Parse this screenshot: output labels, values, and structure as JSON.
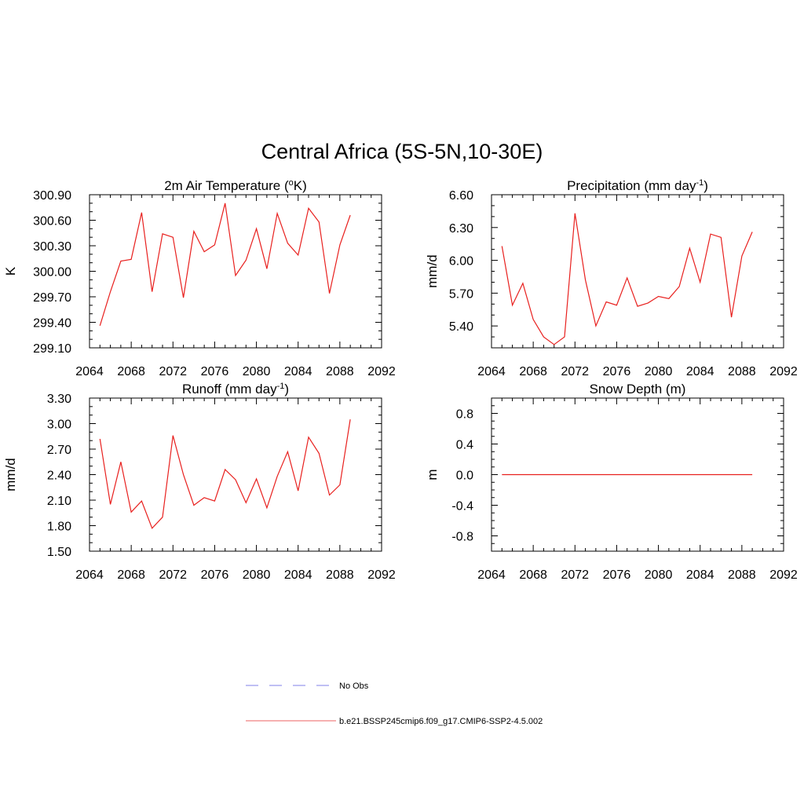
{
  "title": "Central Africa (5S-5N,10-30E)",
  "colors": {
    "model": "#e8201e",
    "obs": "#9a9aee",
    "model_legend": "#f08080",
    "axis": "#000000"
  },
  "legend": [
    {
      "label": "No Obs",
      "style": "dashed",
      "color": "#9a9aee"
    },
    {
      "label": "b.e21.BSSP245cmip6.f09_g17.CMIP6-SSP2-4.5.002",
      "style": "solid",
      "color": "#f08080"
    }
  ],
  "chart_data": [
    {
      "type": "line",
      "title": "2m Air Temperature (",
      "title_sup": "o",
      "title_tail": "K)",
      "ylabel": "K",
      "xlim": [
        2064,
        2092
      ],
      "ylim": [
        299.1,
        300.9
      ],
      "xticks": [
        "2064",
        "2068",
        "2072",
        "2076",
        "2080",
        "2084",
        "2088",
        "2092"
      ],
      "yticks": [
        "299.10",
        "299.40",
        "299.70",
        "300.00",
        "300.30",
        "300.60",
        "300.90"
      ],
      "x": [
        2065,
        2066,
        2067,
        2068,
        2069,
        2070,
        2071,
        2072,
        2073,
        2074,
        2075,
        2076,
        2077,
        2078,
        2079,
        2080,
        2081,
        2082,
        2083,
        2084,
        2085,
        2086,
        2087,
        2088,
        2089
      ],
      "series": [
        {
          "values": [
            299.36,
            299.76,
            300.12,
            300.14,
            300.69,
            299.76,
            300.44,
            300.4,
            299.69,
            300.47,
            300.23,
            300.31,
            300.8,
            299.95,
            300.13,
            300.5,
            300.03,
            300.68,
            300.33,
            300.19,
            300.74,
            300.58,
            299.74,
            300.31,
            300.66
          ]
        }
      ]
    },
    {
      "type": "line",
      "title": "Precipitation (mm day",
      "title_sup": "-1",
      "title_tail": ")",
      "ylabel": "mm/d",
      "xlim": [
        2064,
        2092
      ],
      "ylim": [
        5.2,
        6.6
      ],
      "xticks": [
        "2064",
        "2068",
        "2072",
        "2076",
        "2080",
        "2084",
        "2088",
        "2092"
      ],
      "yticks": [
        "5.40",
        "5.70",
        "6.00",
        "6.30",
        "6.60"
      ],
      "ytick_values": [
        5.4,
        5.7,
        6.0,
        6.3,
        6.6
      ],
      "x": [
        2065,
        2066,
        2067,
        2068,
        2069,
        2070,
        2071,
        2072,
        2073,
        2074,
        2075,
        2076,
        2077,
        2078,
        2079,
        2080,
        2081,
        2082,
        2083,
        2084,
        2085,
        2086,
        2087,
        2088,
        2089
      ],
      "series": [
        {
          "values": [
            6.13,
            5.59,
            5.79,
            5.46,
            5.3,
            5.23,
            5.3,
            6.43,
            5.82,
            5.4,
            5.62,
            5.59,
            5.84,
            5.58,
            5.61,
            5.67,
            5.65,
            5.76,
            6.11,
            5.8,
            6.24,
            6.21,
            5.48,
            6.04,
            6.26
          ]
        }
      ]
    },
    {
      "type": "line",
      "title": "Runoff (mm day",
      "title_sup": "-1",
      "title_tail": ")",
      "ylabel": "mm/d",
      "xlim": [
        2064,
        2092
      ],
      "ylim": [
        1.5,
        3.3
      ],
      "xticks": [
        "2064",
        "2068",
        "2072",
        "2076",
        "2080",
        "2084",
        "2088",
        "2092"
      ],
      "yticks": [
        "1.50",
        "1.80",
        "2.10",
        "2.40",
        "2.70",
        "3.00",
        "3.30"
      ],
      "x": [
        2065,
        2066,
        2067,
        2068,
        2069,
        2070,
        2071,
        2072,
        2073,
        2074,
        2075,
        2076,
        2077,
        2078,
        2079,
        2080,
        2081,
        2082,
        2083,
        2084,
        2085,
        2086,
        2087,
        2088,
        2089
      ],
      "series": [
        {
          "values": [
            2.82,
            2.05,
            2.55,
            1.96,
            2.09,
            1.77,
            1.9,
            2.86,
            2.4,
            2.04,
            2.13,
            2.09,
            2.46,
            2.34,
            2.07,
            2.35,
            2.01,
            2.38,
            2.67,
            2.21,
            2.84,
            2.65,
            2.16,
            2.28,
            3.05
          ]
        }
      ]
    },
    {
      "type": "line",
      "title": "Snow Depth (m)",
      "title_sup": "",
      "title_tail": "",
      "ylabel": "m",
      "xlim": [
        2064,
        2092
      ],
      "ylim": [
        -1.0,
        1.0
      ],
      "xticks": [
        "2064",
        "2068",
        "2072",
        "2076",
        "2080",
        "2084",
        "2088",
        "2092"
      ],
      "yticks": [
        "-0.8",
        "-0.4",
        "0.0",
        "0.4",
        "0.8"
      ],
      "ytick_values": [
        -0.8,
        -0.4,
        0.0,
        0.4,
        0.8
      ],
      "x": [
        2065,
        2066,
        2067,
        2068,
        2069,
        2070,
        2071,
        2072,
        2073,
        2074,
        2075,
        2076,
        2077,
        2078,
        2079,
        2080,
        2081,
        2082,
        2083,
        2084,
        2085,
        2086,
        2087,
        2088,
        2089
      ],
      "series": [
        {
          "values": [
            0,
            0,
            0,
            0,
            0,
            0,
            0,
            0,
            0,
            0,
            0,
            0,
            0,
            0,
            0,
            0,
            0,
            0,
            0,
            0,
            0,
            0,
            0,
            0,
            0
          ]
        }
      ]
    }
  ]
}
